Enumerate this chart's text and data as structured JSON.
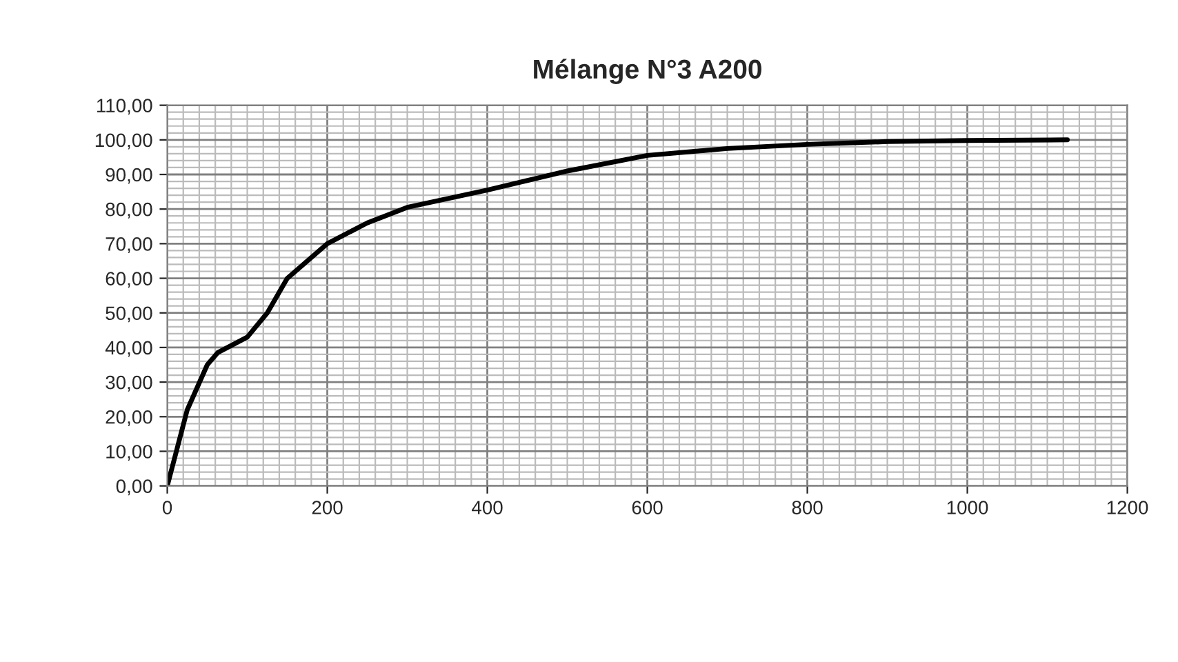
{
  "chart_data": {
    "type": "line",
    "title": "Mélange N°3 A200",
    "x": [
      0,
      25,
      50,
      63,
      100,
      125,
      150,
      200,
      250,
      300,
      400,
      500,
      600,
      700,
      800,
      900,
      1000,
      1125
    ],
    "series": [
      {
        "color": "#000000",
        "values": [
          0,
          22,
          35,
          38.5,
          43,
          50,
          60,
          70,
          76,
          80.5,
          85.5,
          91,
          95.5,
          97.5,
          98.7,
          99.5,
          99.8,
          100
        ]
      }
    ],
    "xlim": [
      0,
      1200
    ],
    "xticks": [
      0,
      200,
      400,
      600,
      800,
      1000,
      1200
    ],
    "ylim": [
      0,
      110
    ],
    "yticks": [
      {
        "value": 0,
        "label": "0,00"
      },
      {
        "value": 10,
        "label": "10,00"
      },
      {
        "value": 20,
        "label": "20,00"
      },
      {
        "value": 30,
        "label": "30,00"
      },
      {
        "value": 40,
        "label": "40,00"
      },
      {
        "value": 50,
        "label": "50,00"
      },
      {
        "value": 60,
        "label": "60,00"
      },
      {
        "value": 70,
        "label": "70,00"
      },
      {
        "value": 80,
        "label": "80,00"
      },
      {
        "value": 90,
        "label": "90,00"
      },
      {
        "value": 100,
        "label": "100,00"
      },
      {
        "value": 110,
        "label": "110,00"
      }
    ],
    "grid": true,
    "legend": false,
    "marker": "none",
    "line_style": "solid"
  }
}
